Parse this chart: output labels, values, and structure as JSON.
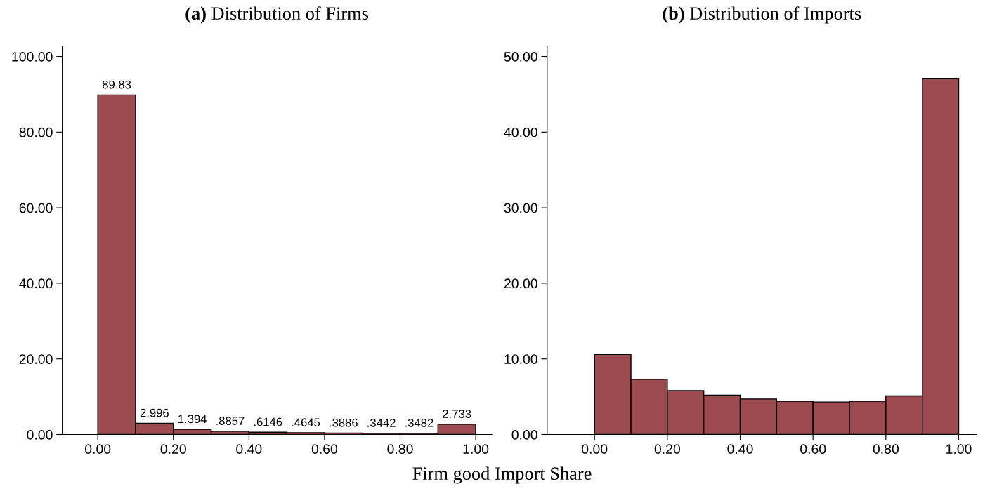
{
  "chart_data": [
    {
      "type": "histogram",
      "title": "(a) Distribution of Firms",
      "xlabel": "Firm good Import Share",
      "color": "#9b4a50",
      "bins": [
        0,
        0.1,
        0.2,
        0.3,
        0.4,
        0.5,
        0.6,
        0.7,
        0.8,
        0.9,
        1.0
      ],
      "values": [
        89.83,
        2.996,
        1.394,
        0.8857,
        0.6146,
        0.4645,
        0.3886,
        0.3442,
        0.3482,
        2.733
      ],
      "value_labels": [
        "89.83",
        "2.996",
        "1.394",
        ".8857",
        ".6146",
        ".4645",
        ".3886",
        ".3442",
        ".3482",
        "2.733"
      ],
      "xlim": [
        -0.094,
        1.043
      ],
      "ylim": [
        0,
        102.6
      ],
      "xticks": [
        {
          "value": 0,
          "label": "0.00"
        },
        {
          "value": 0.2,
          "label": "0.20"
        },
        {
          "value": 0.4,
          "label": "0.40"
        },
        {
          "value": 0.6,
          "label": "0.60"
        },
        {
          "value": 0.8,
          "label": "0.80"
        },
        {
          "value": 1.0,
          "label": "1.00"
        }
      ],
      "yticks": [
        {
          "value": 0,
          "label": "0.00"
        },
        {
          "value": 20,
          "label": "20.00"
        },
        {
          "value": 40,
          "label": "40.00"
        },
        {
          "value": 60,
          "label": "60.00"
        },
        {
          "value": 80,
          "label": "80.00"
        },
        {
          "value": 100,
          "label": "100.00"
        }
      ]
    },
    {
      "type": "histogram",
      "title": "(b) Distribution of Imports",
      "color": "#9b4a50",
      "bins": [
        0,
        0.1,
        0.2,
        0.3,
        0.4,
        0.5,
        0.6,
        0.7,
        0.8,
        0.9,
        1.0
      ],
      "values": [
        10.6,
        7.3,
        5.8,
        5.2,
        4.7,
        4.4,
        4.3,
        4.4,
        5.1,
        47.1
      ],
      "xlim": [
        -0.13,
        1.05
      ],
      "ylim": [
        0,
        51.3
      ],
      "xticks": [
        {
          "value": 0,
          "label": "0.00"
        },
        {
          "value": 0.2,
          "label": "0.20"
        },
        {
          "value": 0.4,
          "label": "0.40"
        },
        {
          "value": 0.6,
          "label": "0.60"
        },
        {
          "value": 0.8,
          "label": "0.80"
        },
        {
          "value": 1.0,
          "label": "1.00"
        }
      ],
      "yticks": [
        {
          "value": 0,
          "label": "0.00"
        },
        {
          "value": 10,
          "label": "10.00"
        },
        {
          "value": 20,
          "label": "20.00"
        },
        {
          "value": 30,
          "label": "30.00"
        },
        {
          "value": 40,
          "label": "40.00"
        },
        {
          "value": 50,
          "label": "50.00"
        }
      ]
    }
  ]
}
